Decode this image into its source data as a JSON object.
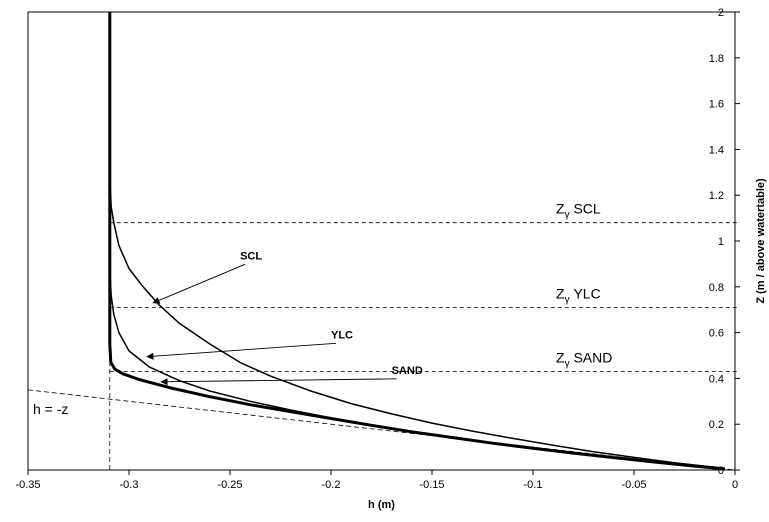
{
  "chart_data": {
    "type": "line",
    "title": "",
    "xlabel": "h (m)",
    "ylabel": "Z (m / above watertable)",
    "xlim": [
      -0.35,
      0
    ],
    "ylim": [
      0,
      2
    ],
    "x_ticks": [
      "-0.35",
      "-0.3",
      "-0.25",
      "-0.2",
      "-0.15",
      "-0.1",
      "-0.05",
      "0"
    ],
    "y_ticks": [
      "0",
      "0.2",
      "0.4",
      "0.6",
      "0.8",
      "1",
      "1.2",
      "1.4",
      "1.6",
      "1.8",
      "2"
    ],
    "grid": false,
    "series": [
      {
        "name": "SCL",
        "x": [
          -0.3095,
          -0.3095,
          -0.3088,
          -0.3075,
          -0.305,
          -0.3,
          -0.293,
          -0.285,
          -0.275,
          -0.26,
          -0.245,
          -0.23,
          -0.21,
          -0.19,
          -0.17,
          -0.15,
          -0.13,
          -0.11,
          -0.09,
          -0.07,
          -0.05,
          -0.03,
          -0.01,
          -0.005
        ],
        "y": [
          2.0,
          1.27,
          1.15,
          1.08,
          0.98,
          0.88,
          0.8,
          0.72,
          0.64,
          0.55,
          0.47,
          0.41,
          0.345,
          0.29,
          0.245,
          0.205,
          0.17,
          0.138,
          0.108,
          0.08,
          0.055,
          0.032,
          0.012,
          0.006
        ],
        "stroke_width": 1.5
      },
      {
        "name": "YLC",
        "x": [
          -0.3095,
          -0.3095,
          -0.3088,
          -0.3075,
          -0.305,
          -0.3,
          -0.29,
          -0.275,
          -0.26,
          -0.24,
          -0.22,
          -0.2,
          -0.18,
          -0.16,
          -0.14,
          -0.12,
          -0.1,
          -0.08,
          -0.06,
          -0.04,
          -0.02,
          -0.005
        ],
        "y": [
          2.0,
          0.88,
          0.76,
          0.68,
          0.6,
          0.52,
          0.45,
          0.39,
          0.345,
          0.3,
          0.262,
          0.228,
          0.196,
          0.168,
          0.142,
          0.118,
          0.095,
          0.074,
          0.054,
          0.035,
          0.017,
          0.005
        ],
        "stroke_width": 1.5
      },
      {
        "name": "SAND",
        "x": [
          -0.3095,
          -0.3095,
          -0.309,
          -0.307,
          -0.303,
          -0.295,
          -0.28,
          -0.26,
          -0.24,
          -0.22,
          -0.2,
          -0.18,
          -0.16,
          -0.14,
          -0.12,
          -0.1,
          -0.08,
          -0.06,
          -0.04,
          -0.02,
          -0.005
        ],
        "y": [
          2.0,
          0.55,
          0.47,
          0.44,
          0.42,
          0.395,
          0.36,
          0.32,
          0.285,
          0.255,
          0.225,
          0.195,
          0.167,
          0.142,
          0.117,
          0.095,
          0.074,
          0.054,
          0.035,
          0.017,
          0.005
        ],
        "stroke_width": 3
      }
    ],
    "reference_lines": [
      {
        "label": "h = -z",
        "x": [
          -0.35,
          0
        ],
        "y": [
          0.35,
          0
        ]
      },
      {
        "x": [
          -0.3095,
          -0.3095
        ],
        "y": [
          0,
          2
        ]
      }
    ],
    "zgamma_levels": [
      {
        "label": "Z",
        "sub": "γ",
        "suffix": " SCL",
        "y": 1.08
      },
      {
        "label": "Z",
        "sub": "γ",
        "suffix": " YLC",
        "y": 0.71
      },
      {
        "label": "Z",
        "sub": "γ",
        "suffix": " SAND",
        "y": 0.43
      }
    ],
    "annotations": [
      {
        "text": "SCL",
        "target_series": "SCL",
        "text_at": [
          -0.245,
          0.92
        ],
        "arrow_to": [
          -0.288,
          0.73
        ]
      },
      {
        "text": "YLC",
        "target_series": "YLC",
        "text_at": [
          -0.2,
          0.575
        ],
        "arrow_to": [
          -0.291,
          0.495
        ]
      },
      {
        "text": "SAND",
        "target_series": "SAND",
        "text_at": [
          -0.17,
          0.42
        ],
        "arrow_to": [
          -0.284,
          0.385
        ]
      }
    ]
  }
}
